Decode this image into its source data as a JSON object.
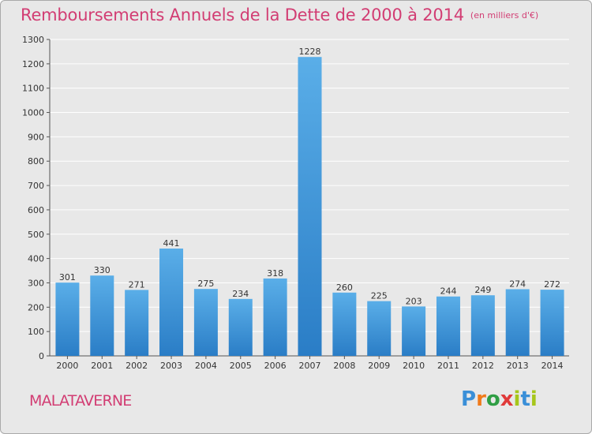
{
  "header": {
    "title": "Remboursements Annuels de la Dette de 2000 à 2014",
    "subtitle": "(en milliers d'€)"
  },
  "footer": {
    "commune": "MALATAVERNE",
    "logo_text": "Proxiti"
  },
  "colors": {
    "accent": "#d23d73",
    "bar_top": "#5aaee8",
    "bar_bottom": "#2a7dc6",
    "background": "#e8e8e8",
    "grid": "#ffffff"
  },
  "chart_data": {
    "type": "bar",
    "title": "Remboursements Annuels de la Dette de 2000 à 2014",
    "subtitle": "(en milliers d'€)",
    "xlabel": "",
    "ylabel": "",
    "categories": [
      "2000",
      "2001",
      "2002",
      "2003",
      "2004",
      "2005",
      "2006",
      "2007",
      "2008",
      "2009",
      "2010",
      "2011",
      "2012",
      "2013",
      "2014"
    ],
    "values": [
      301,
      330,
      271,
      441,
      275,
      234,
      318,
      1228,
      260,
      225,
      203,
      244,
      249,
      274,
      272
    ],
    "ylim": [
      0,
      1300
    ],
    "yticks": [
      0,
      100,
      200,
      300,
      400,
      500,
      600,
      700,
      800,
      900,
      1000,
      1100,
      1200,
      1300
    ],
    "grid": true,
    "data_labels": true
  }
}
